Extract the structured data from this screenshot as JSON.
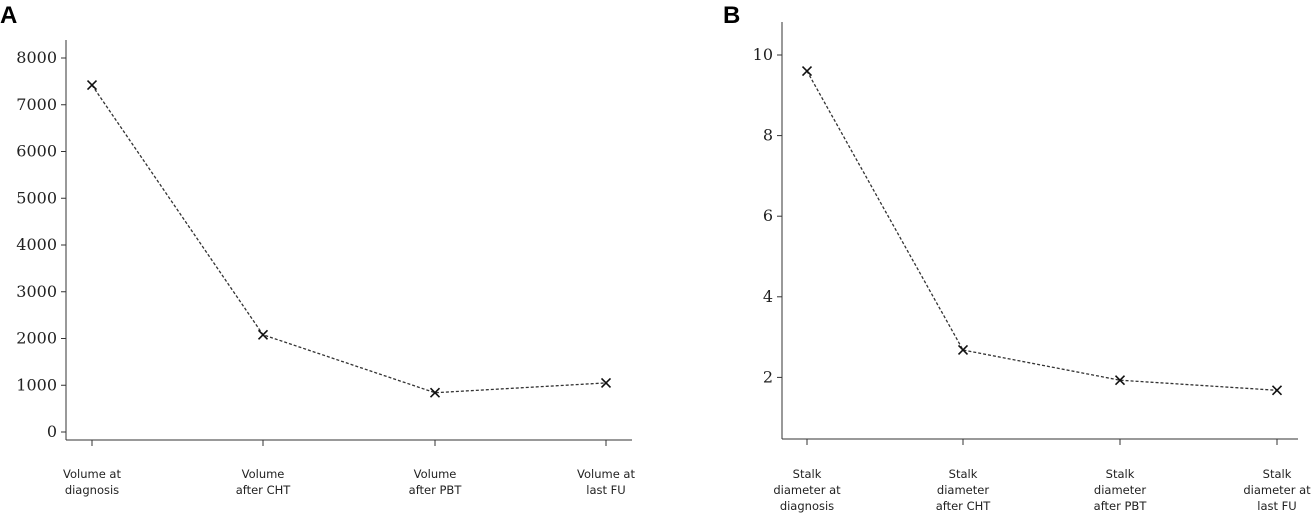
{
  "chart_data": [
    {
      "type": "line",
      "panel_label": "A",
      "categories": [
        [
          "Volume at",
          "diagnosis"
        ],
        [
          "Volume",
          "after CHT"
        ],
        [
          "Volume",
          "after PBT"
        ],
        [
          "Volume at",
          "last FU"
        ]
      ],
      "series": [
        {
          "values": [
            7420,
            2080,
            840,
            1050
          ]
        }
      ],
      "ylim": [
        0,
        8000
      ],
      "yticks": [
        0,
        1000,
        2000,
        3000,
        4000,
        5000,
        6000,
        7000,
        8000
      ],
      "marker": "x",
      "line_style": "dashed",
      "grid": false
    },
    {
      "type": "line",
      "panel_label": "B",
      "categories": [
        [
          "Stalk",
          "diameter at",
          "diagnosis"
        ],
        [
          "Stalk",
          "diameter",
          "after CHT"
        ],
        [
          "Stalk",
          "diameter",
          "after PBT"
        ],
        [
          "Stalk",
          "diameter at",
          "last FU"
        ]
      ],
      "series": [
        {
          "values": [
            9.6,
            2.68,
            1.93,
            1.68
          ]
        }
      ],
      "ylim": [
        0,
        10
      ],
      "yticks": [
        2,
        4,
        6,
        8,
        10
      ],
      "marker": "x",
      "line_style": "dashed",
      "grid": false
    }
  ]
}
